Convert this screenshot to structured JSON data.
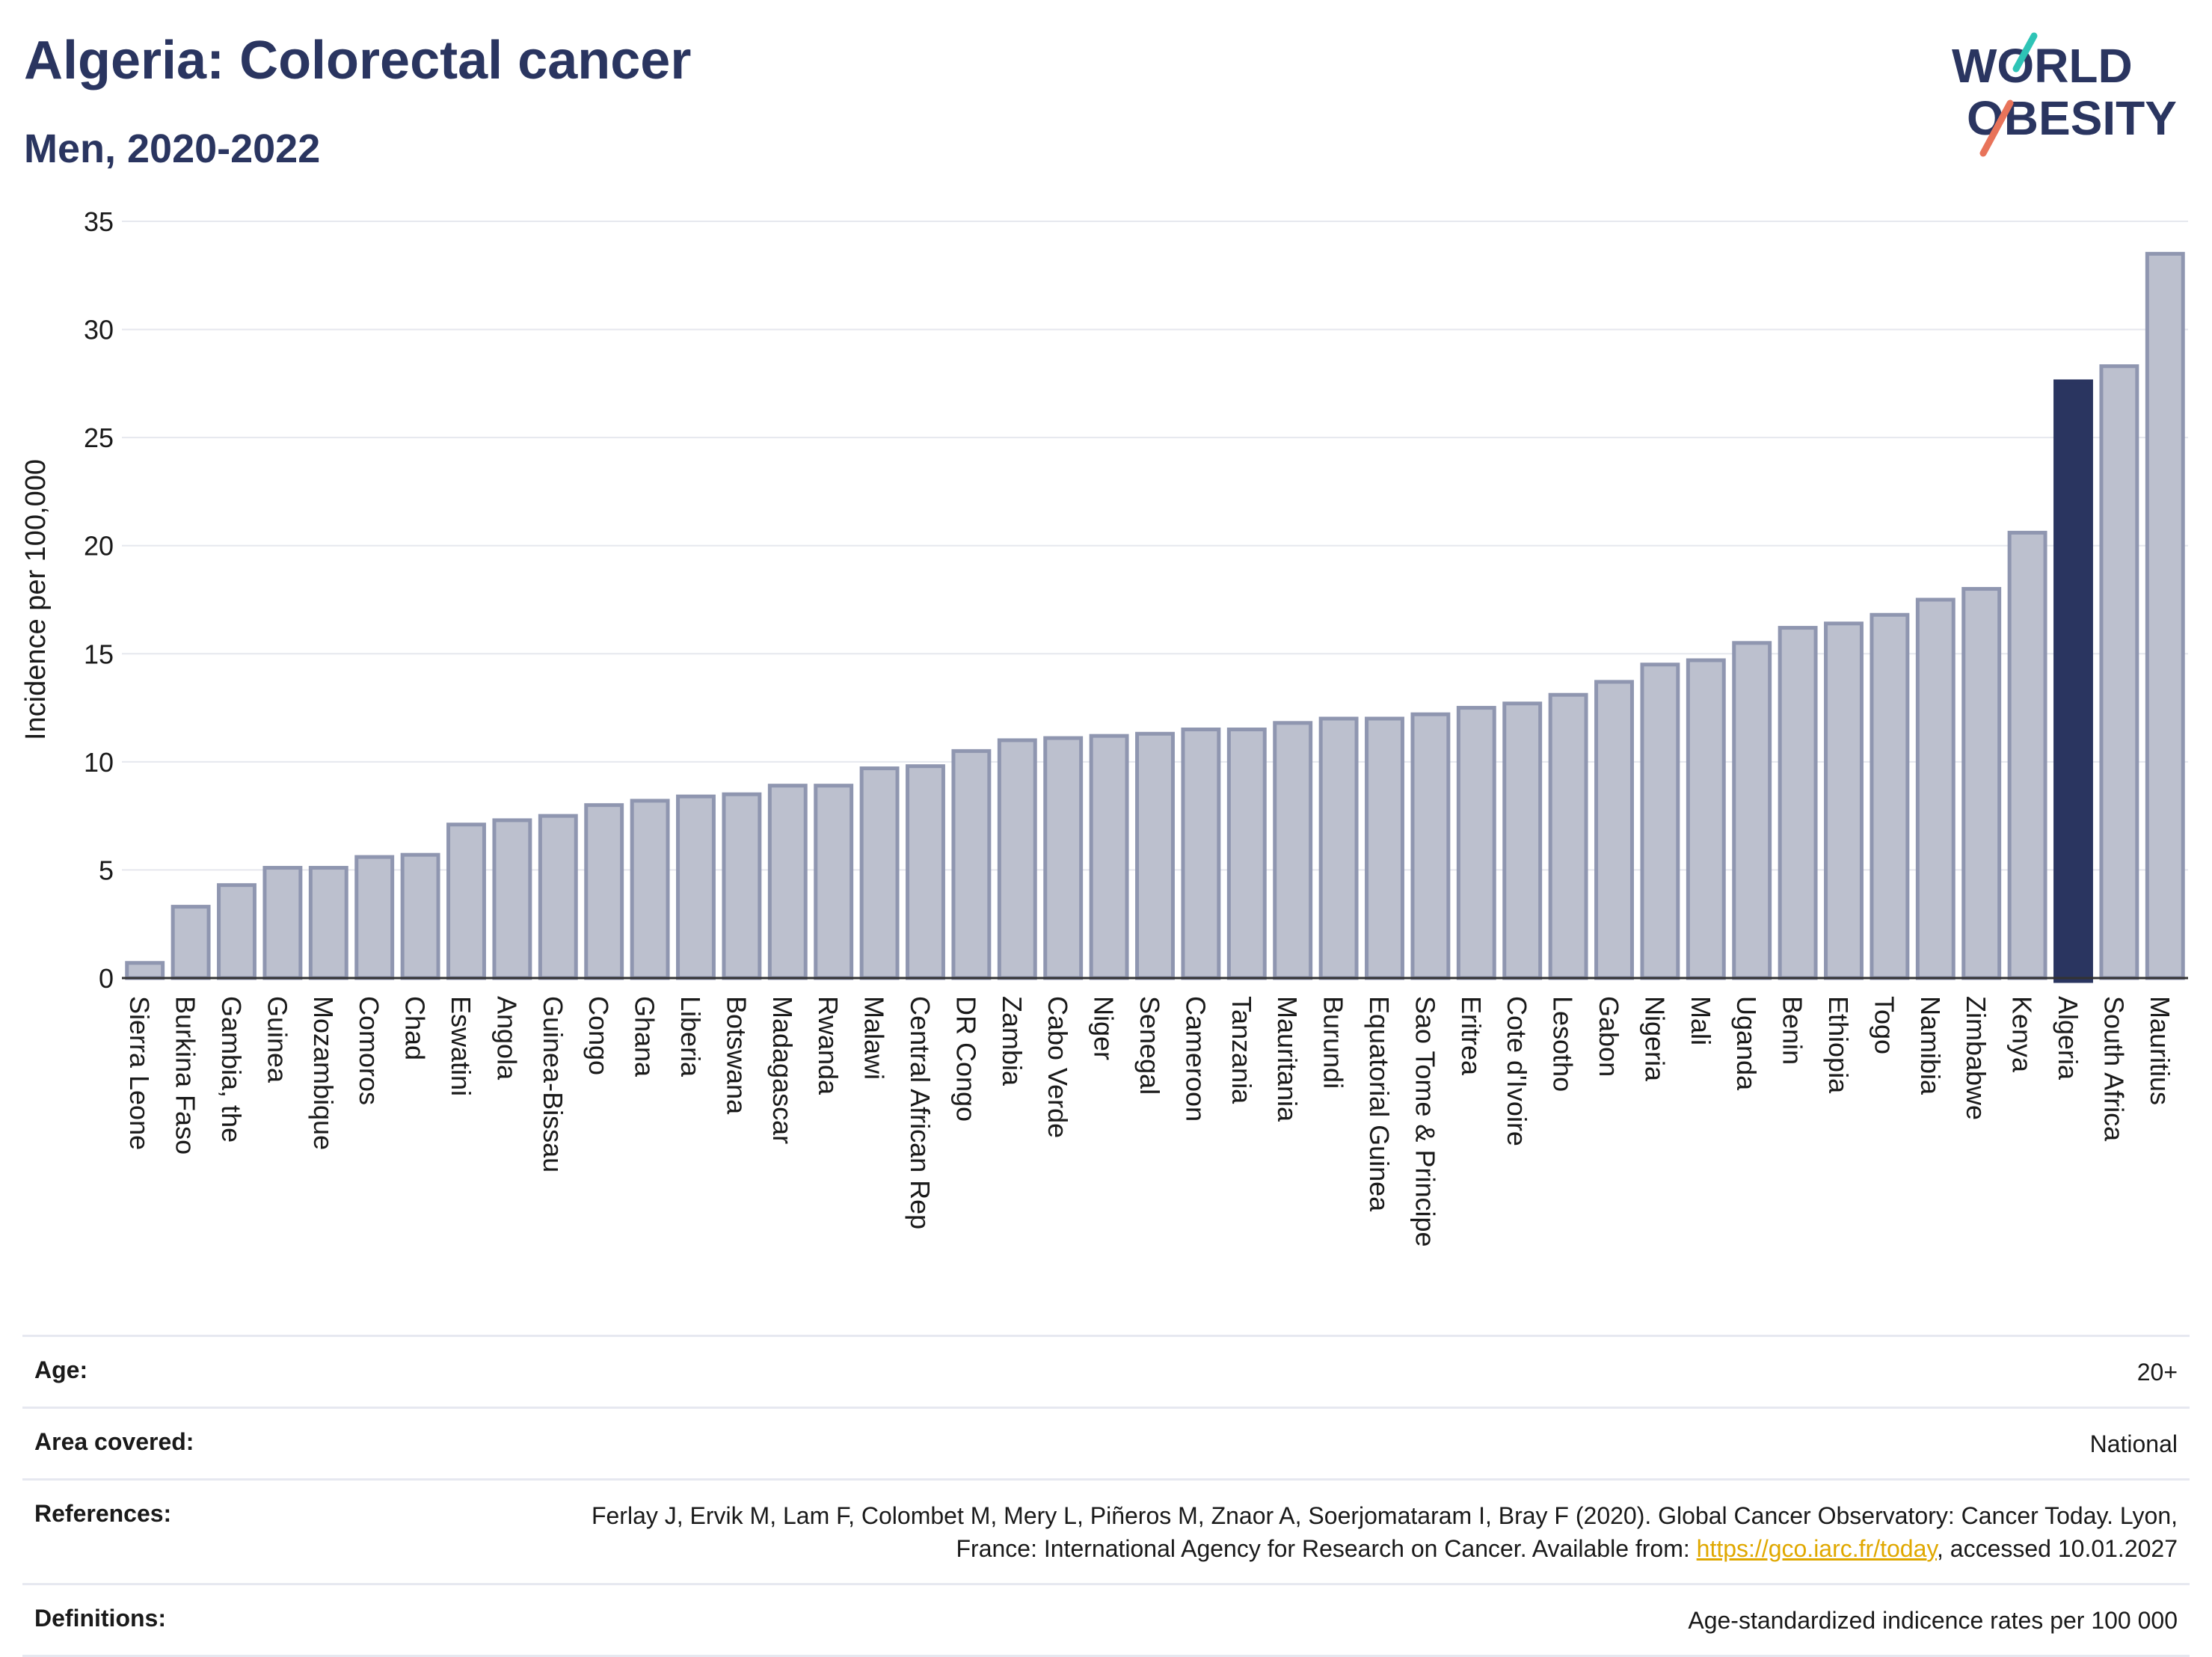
{
  "header": {
    "title": "Algeria: Colorectal cancer",
    "subtitle": "Men, 2020-2022",
    "logo_line1": "WORLD",
    "logo_line2": "OBESITY"
  },
  "colors": {
    "bar_default": "#bcc0ce",
    "bar_border": "#8f96b0",
    "bar_highlight": "#2a3560",
    "title": "#2a3560",
    "logo_teal": "#2ec4b6",
    "logo_coral": "#e8735a"
  },
  "chart_data": {
    "type": "bar",
    "title": "Algeria: Colorectal cancer",
    "subtitle": "Men, 2020-2022",
    "ylabel": "Incidence per 100,000",
    "xlabel": "",
    "ylim": [
      0,
      35
    ],
    "yticks": [
      0,
      5,
      10,
      15,
      20,
      25,
      30,
      35
    ],
    "grid": true,
    "highlight": "Algeria",
    "categories": [
      "Sierra Leone",
      "Burkina Faso",
      "Gambia, the",
      "Guinea",
      "Mozambique",
      "Comoros",
      "Chad",
      "Eswatini",
      "Angola",
      "Guinea-Bissau",
      "Congo",
      "Ghana",
      "Liberia",
      "Botswana",
      "Madagascar",
      "Rwanda",
      "Malawi",
      "Central African Rep",
      "DR Congo",
      "Zambia",
      "Cabo Verde",
      "Niger",
      "Senegal",
      "Cameroon",
      "Tanzania",
      "Mauritania",
      "Burundi",
      "Equatorial Guinea",
      "Sao Tome & Principe",
      "Eritrea",
      "Cote d'Ivoire",
      "Lesotho",
      "Gabon",
      "Nigeria",
      "Mali",
      "Uganda",
      "Benin",
      "Ethiopia",
      "Togo",
      "Namibia",
      "Zimbabwe",
      "Kenya",
      "Algeria",
      "South Africa",
      "Mauritius"
    ],
    "values": [
      0.7,
      3.3,
      4.3,
      5.1,
      5.1,
      5.6,
      5.7,
      7.1,
      7.3,
      7.5,
      8.0,
      8.2,
      8.4,
      8.5,
      8.9,
      8.9,
      9.7,
      9.8,
      10.5,
      11.0,
      11.1,
      11.2,
      11.3,
      11.5,
      11.5,
      11.8,
      12.0,
      12.0,
      12.2,
      12.5,
      12.7,
      13.1,
      13.7,
      14.5,
      14.7,
      15.5,
      16.2,
      16.4,
      16.8,
      17.5,
      18.0,
      20.6,
      27.6,
      28.3,
      33.5
    ]
  },
  "meta": {
    "age_label": "Age:",
    "age_value": "20+",
    "area_label": "Area covered:",
    "area_value": "National",
    "references_label": "References:",
    "references_text_1": "Ferlay J, Ervik M, Lam F, Colombet M, Mery L, Piñeros M, Znaor A, Soerjomataram I, Bray F (2020). Global Cancer Observatory: Cancer Today. Lyon, France: International Agency for Research on Cancer. Available from: ",
    "references_link": "https://gco.iarc.fr/today",
    "references_text_2": ", accessed 10.01.2027",
    "definitions_label": "Definitions:",
    "definitions_value": "Age-standardized indicence rates per 100 000"
  }
}
